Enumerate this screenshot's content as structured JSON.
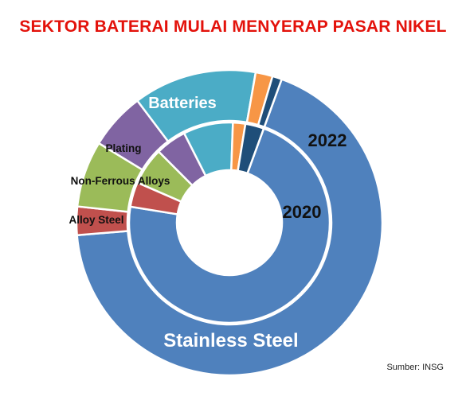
{
  "title": "SEKTOR BATERAI MULAI MENYERAP PASAR NIKEL",
  "source": "Sumber: INSG",
  "colors": {
    "title": "#e3120b",
    "stainless_steel": "#4f81bd",
    "alloy_steel": "#c0504d",
    "non_ferrous_alloys": "#9bbb59",
    "plating": "#8064a2",
    "batteries": "#4bacc6",
    "others_orange": "#f79646",
    "others_navy": "#1f4e79"
  },
  "chart_data": {
    "type": "donut",
    "title": "SEKTOR BATERAI MULAI MENYERAP PASAR NIKEL",
    "categories": [
      "Stainless Steel",
      "Alloy Steel",
      "Non-Ferrous Alloys",
      "Plating",
      "Batteries",
      "",
      ""
    ],
    "series": [
      {
        "name": "2022",
        "ring": "outer",
        "values": [
          68,
          3,
          7,
          6,
          13,
          1.8,
          1.0
        ]
      },
      {
        "name": "2020",
        "ring": "inner",
        "values": [
          72,
          4,
          6,
          5,
          8,
          2,
          3
        ]
      }
    ],
    "segment_labels": {
      "stainless_steel": "Stainless Steel",
      "alloy_steel": "Alloy Steel",
      "non_ferrous_alloys": "Non-Ferrous Alloys",
      "plating": "Plating",
      "batteries": "Batteries"
    }
  }
}
